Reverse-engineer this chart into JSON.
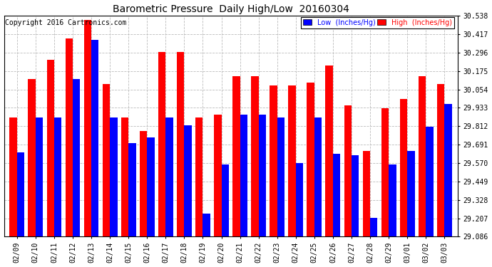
{
  "title": "Barometric Pressure  Daily High/Low  20160304",
  "copyright": "Copyright 2016 Cartronics.com",
  "legend_low": "Low  (Inches/Hg)",
  "legend_high": "High  (Inches/Hg)",
  "dates": [
    "02/09",
    "02/10",
    "02/11",
    "02/12",
    "02/13",
    "02/14",
    "02/15",
    "02/16",
    "02/17",
    "02/18",
    "02/19",
    "02/20",
    "02/21",
    "02/22",
    "02/23",
    "02/24",
    "02/25",
    "02/26",
    "02/27",
    "02/28",
    "02/29",
    "03/01",
    "03/02",
    "03/03"
  ],
  "high_values": [
    29.87,
    30.12,
    30.25,
    30.39,
    30.51,
    30.09,
    29.87,
    29.78,
    30.3,
    30.3,
    29.87,
    29.89,
    30.14,
    30.14,
    30.08,
    30.08,
    30.1,
    30.21,
    29.95,
    29.65,
    29.93,
    29.99,
    30.14,
    30.09
  ],
  "low_values": [
    29.64,
    29.87,
    29.87,
    30.12,
    30.38,
    29.87,
    29.7,
    29.74,
    29.87,
    29.82,
    29.24,
    29.56,
    29.89,
    29.89,
    29.87,
    29.57,
    29.87,
    29.63,
    29.62,
    29.21,
    29.56,
    29.65,
    29.81,
    29.96
  ],
  "ylim_min": 29.086,
  "ylim_max": 30.538,
  "yticks": [
    29.086,
    29.207,
    29.328,
    29.449,
    29.57,
    29.691,
    29.812,
    29.933,
    30.054,
    30.175,
    30.296,
    30.417,
    30.538
  ],
  "bar_color_high": "#FF0000",
  "bar_color_low": "#0000FF",
  "bg_color": "#FFFFFF",
  "grid_color": "#BBBBBB",
  "title_fontsize": 10,
  "axis_fontsize": 7,
  "legend_fontsize": 7,
  "copyright_fontsize": 7
}
